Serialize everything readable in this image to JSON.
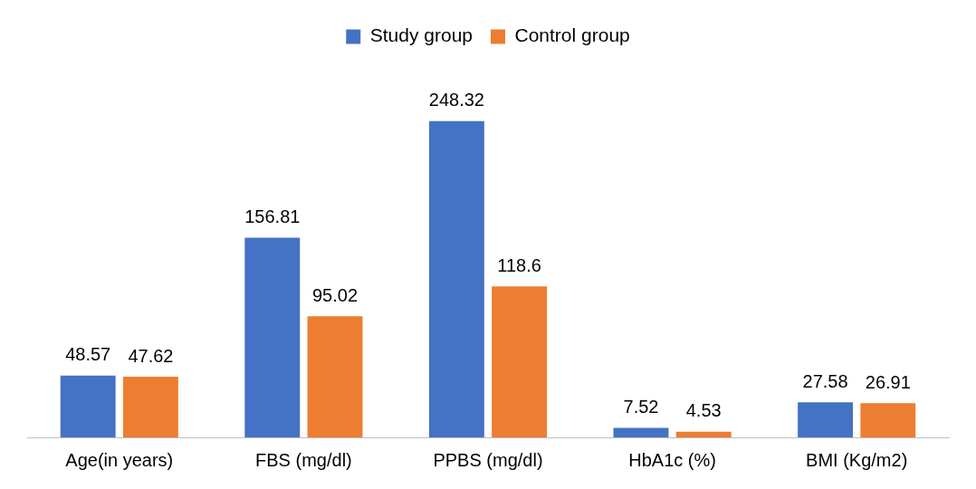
{
  "chart_data": {
    "type": "bar",
    "categories": [
      "Age(in years)",
      "FBS (mg/dl)",
      "PPBS (mg/dl)",
      "HbA1c (%)",
      "BMI (Kg/m2)"
    ],
    "series": [
      {
        "name": "Study group",
        "color": "#4472c4",
        "values": [
          48.57,
          156.81,
          248.32,
          7.52,
          27.58
        ]
      },
      {
        "name": "Control group",
        "color": "#ed7d31",
        "values": [
          47.62,
          95.02,
          118.6,
          4.53,
          26.91
        ]
      }
    ],
    "data_labels": true,
    "legend": "top",
    "grid": false
  }
}
